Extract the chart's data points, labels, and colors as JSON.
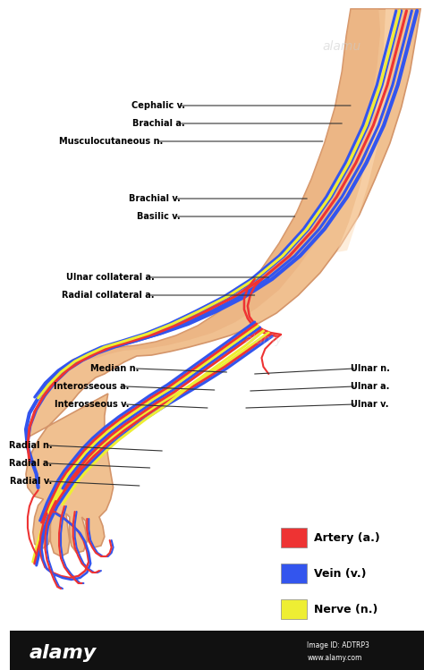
{
  "background_color": "#ffffff",
  "arm_skin_color": "#f0c090",
  "arm_skin_dark": "#d4956a",
  "arm_skin_shadow": "#e8aa78",
  "arm_skin_highlight": "#fddcb8",
  "artery_color": "#ee3333",
  "vein_color": "#3355ee",
  "nerve_color": "#eeee33",
  "legend": {
    "artery_label": "Artery (a.)",
    "vein_label": "Vein (v.)",
    "nerve_label": "Nerve (n.)",
    "artery_color": "#ee3333",
    "vein_color": "#3355ee",
    "nerve_color": "#eeee33"
  },
  "label_line_color": "#333333",
  "label_fontsize": 7.0,
  "alamy_bar_color": "#111111"
}
